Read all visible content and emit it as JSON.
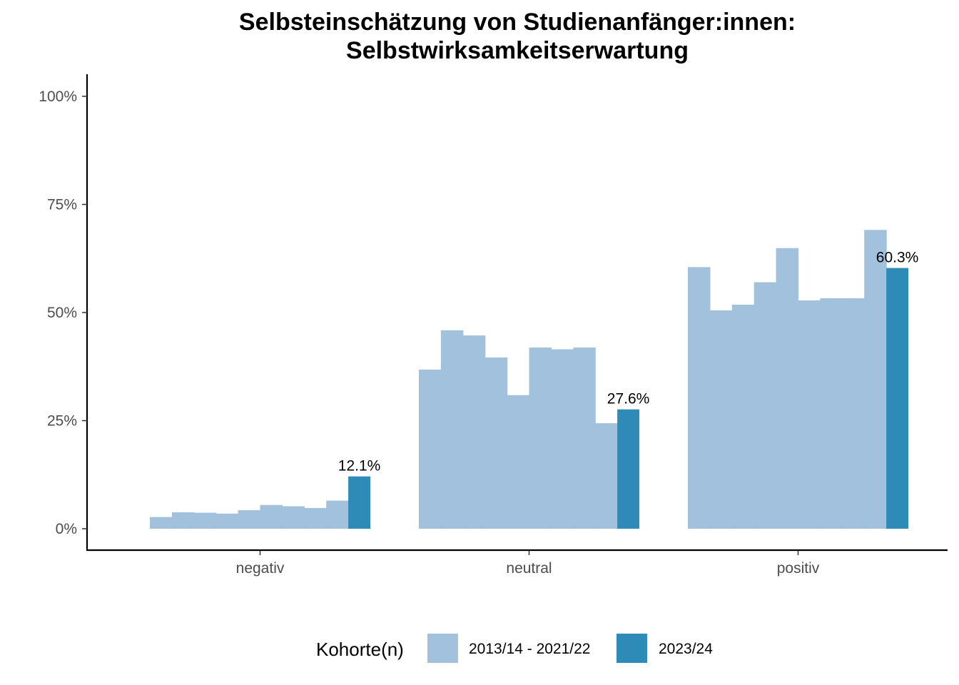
{
  "chart_data": {
    "type": "bar",
    "title_line1": "Selbsteinschätzung von Studienanfänger:innen:",
    "title_line2": "Selbstwirksamkeitserwartung",
    "categories": [
      "negativ",
      "neutral",
      "positiv"
    ],
    "y_ticks": [
      "0%",
      "25%",
      "50%",
      "75%",
      "100%"
    ],
    "ylim": [
      0,
      1.05
    ],
    "legend": {
      "title": "Kohorte(n)",
      "position": "bottom",
      "entries": [
        {
          "label": "2013/14 - 2021/22",
          "color": "#a1c1dd"
        },
        {
          "label": "2023/24",
          "color": "#2e8bb8"
        }
      ]
    },
    "series": [
      {
        "name": "2013/14 - 2021/22",
        "color": "#a1c1dd",
        "values": [
          [
            0.027,
            0.038,
            0.037,
            0.035,
            0.043,
            0.055,
            0.052,
            0.048,
            0.065
          ],
          [
            0.368,
            0.459,
            0.447,
            0.396,
            0.309,
            0.419,
            0.415,
            0.419,
            0.244
          ],
          [
            0.605,
            0.505,
            0.518,
            0.57,
            0.649,
            0.528,
            0.533,
            0.533,
            0.691
          ]
        ]
      },
      {
        "name": "2023/24",
        "color": "#2e8bb8",
        "values": [
          0.121,
          0.276,
          0.603
        ],
        "labels": [
          "12.1%",
          "27.6%",
          "60.3%"
        ]
      }
    ],
    "grid": false
  }
}
